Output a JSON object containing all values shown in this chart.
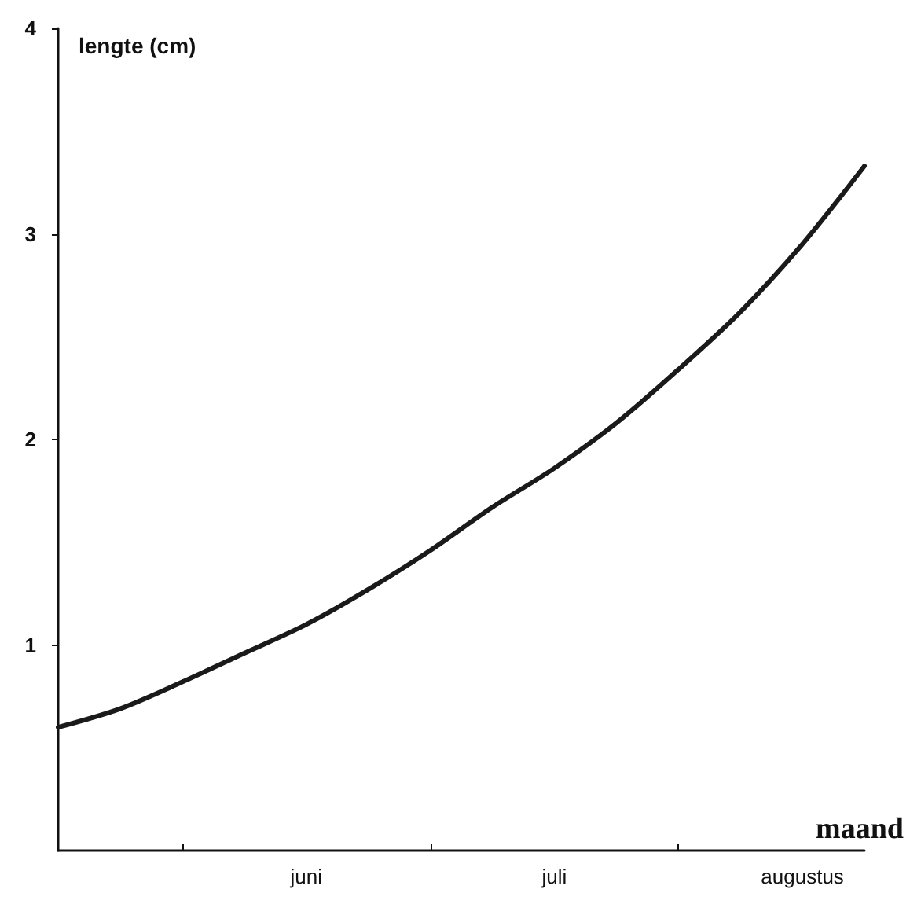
{
  "chart_data": {
    "type": "line",
    "ylabel": "lengte (cm)",
    "xlabel": "maand",
    "categories": [
      null,
      null,
      null,
      null,
      "juni",
      null,
      null,
      null,
      "juli",
      null,
      null,
      null,
      "augustus",
      null
    ],
    "values": [
      0.6,
      0.69,
      0.82,
      0.96,
      1.1,
      1.27,
      1.46,
      1.67,
      1.86,
      2.08,
      2.34,
      2.62,
      2.95,
      3.33
    ],
    "color": "#1a1a1a",
    "marker": "none",
    "line_style": "solid",
    "grid": false,
    "ylim": [
      0,
      4
    ],
    "yticks": [
      1,
      2,
      3,
      4
    ]
  }
}
